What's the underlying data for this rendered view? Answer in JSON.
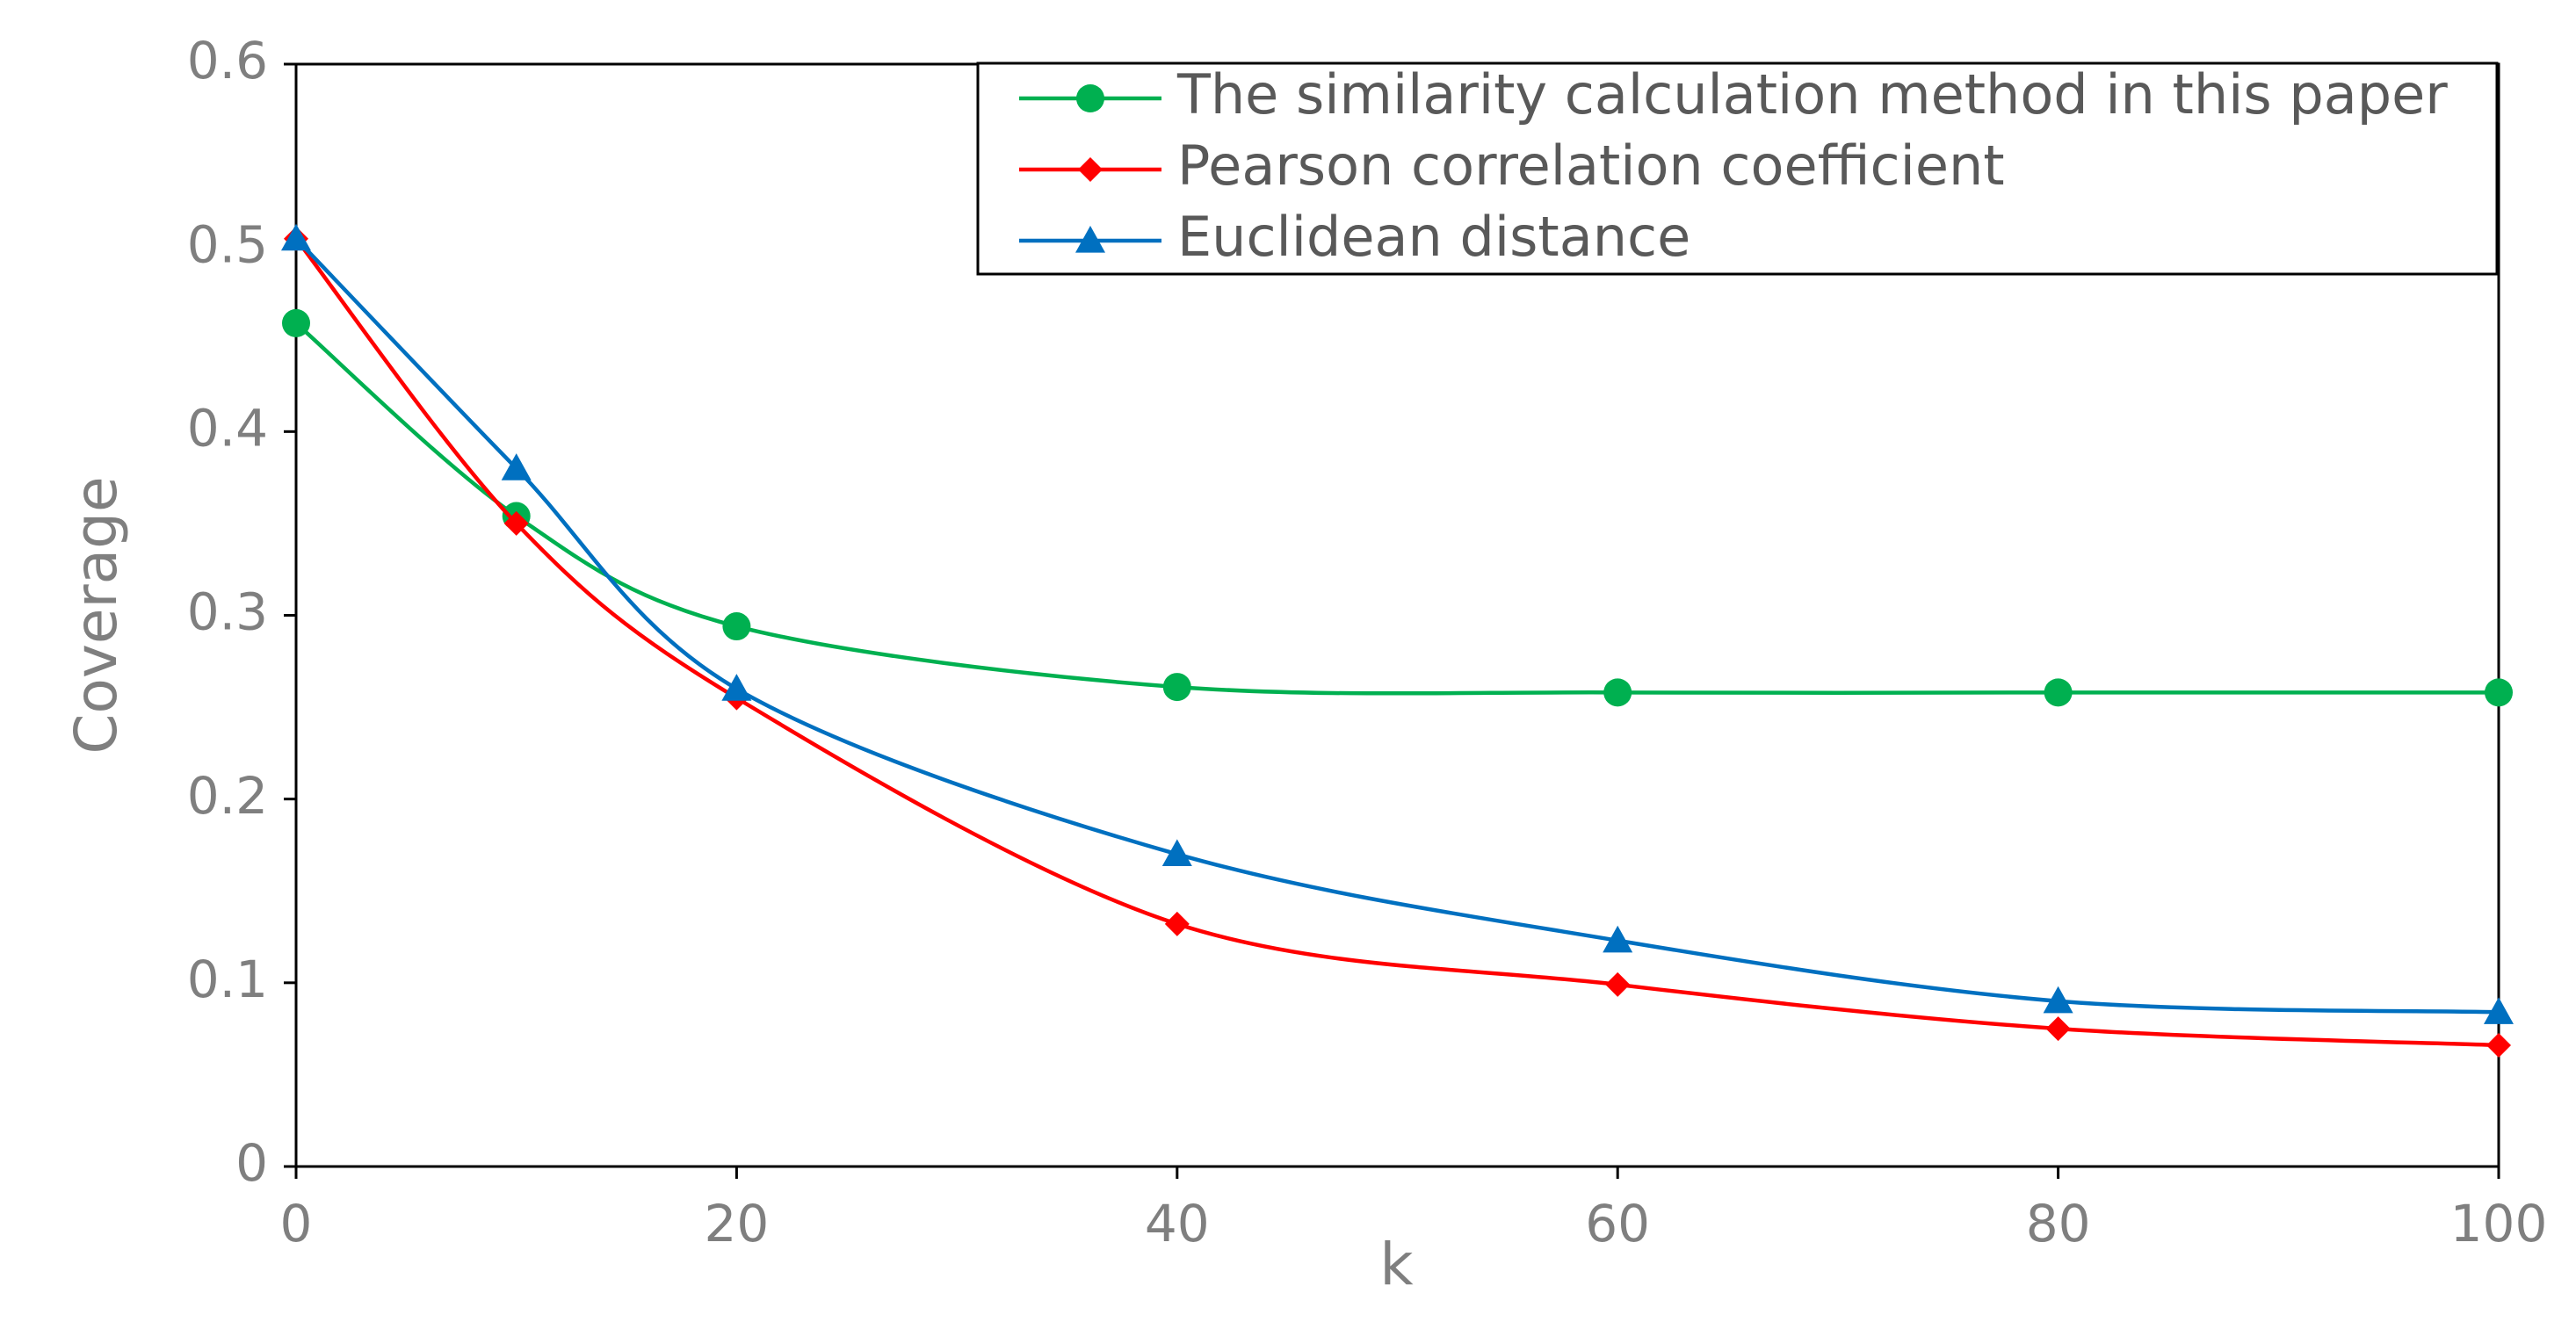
{
  "chart_data": {
    "type": "line",
    "title": "",
    "xlabel": "k",
    "ylabel": "Coverage",
    "x": [
      0,
      10,
      20,
      40,
      60,
      80,
      100
    ],
    "xlim": [
      0,
      100
    ],
    "ylim": [
      0,
      0.6
    ],
    "x_ticks": [
      0,
      20,
      40,
      60,
      80,
      100
    ],
    "y_ticks": [
      0,
      0.1,
      0.2,
      0.3,
      0.4,
      0.5,
      0.6
    ],
    "x_tick_labels": [
      "0",
      "20",
      "40",
      "60",
      "80",
      "100"
    ],
    "y_tick_labels": [
      "0",
      "0.1",
      "0.2",
      "0.3",
      "0.4",
      "0.5",
      "0.6"
    ],
    "grid": false,
    "legend_position": "top-right",
    "series": [
      {
        "name": "The similarity calculation method in this paper",
        "color": "#00b050",
        "marker": "circle",
        "values": [
          0.459,
          0.354,
          0.294,
          0.261,
          0.258,
          0.258,
          0.258
        ]
      },
      {
        "name": "Pearson correlation coefficient",
        "color": "#ff0000",
        "marker": "diamond",
        "values": [
          0.505,
          0.35,
          0.255,
          0.132,
          0.099,
          0.075,
          0.066
        ]
      },
      {
        "name": "Euclidean distance",
        "color": "#0070c0",
        "marker": "triangle",
        "values": [
          0.505,
          0.38,
          0.26,
          0.17,
          0.123,
          0.09,
          0.084
        ]
      }
    ]
  }
}
